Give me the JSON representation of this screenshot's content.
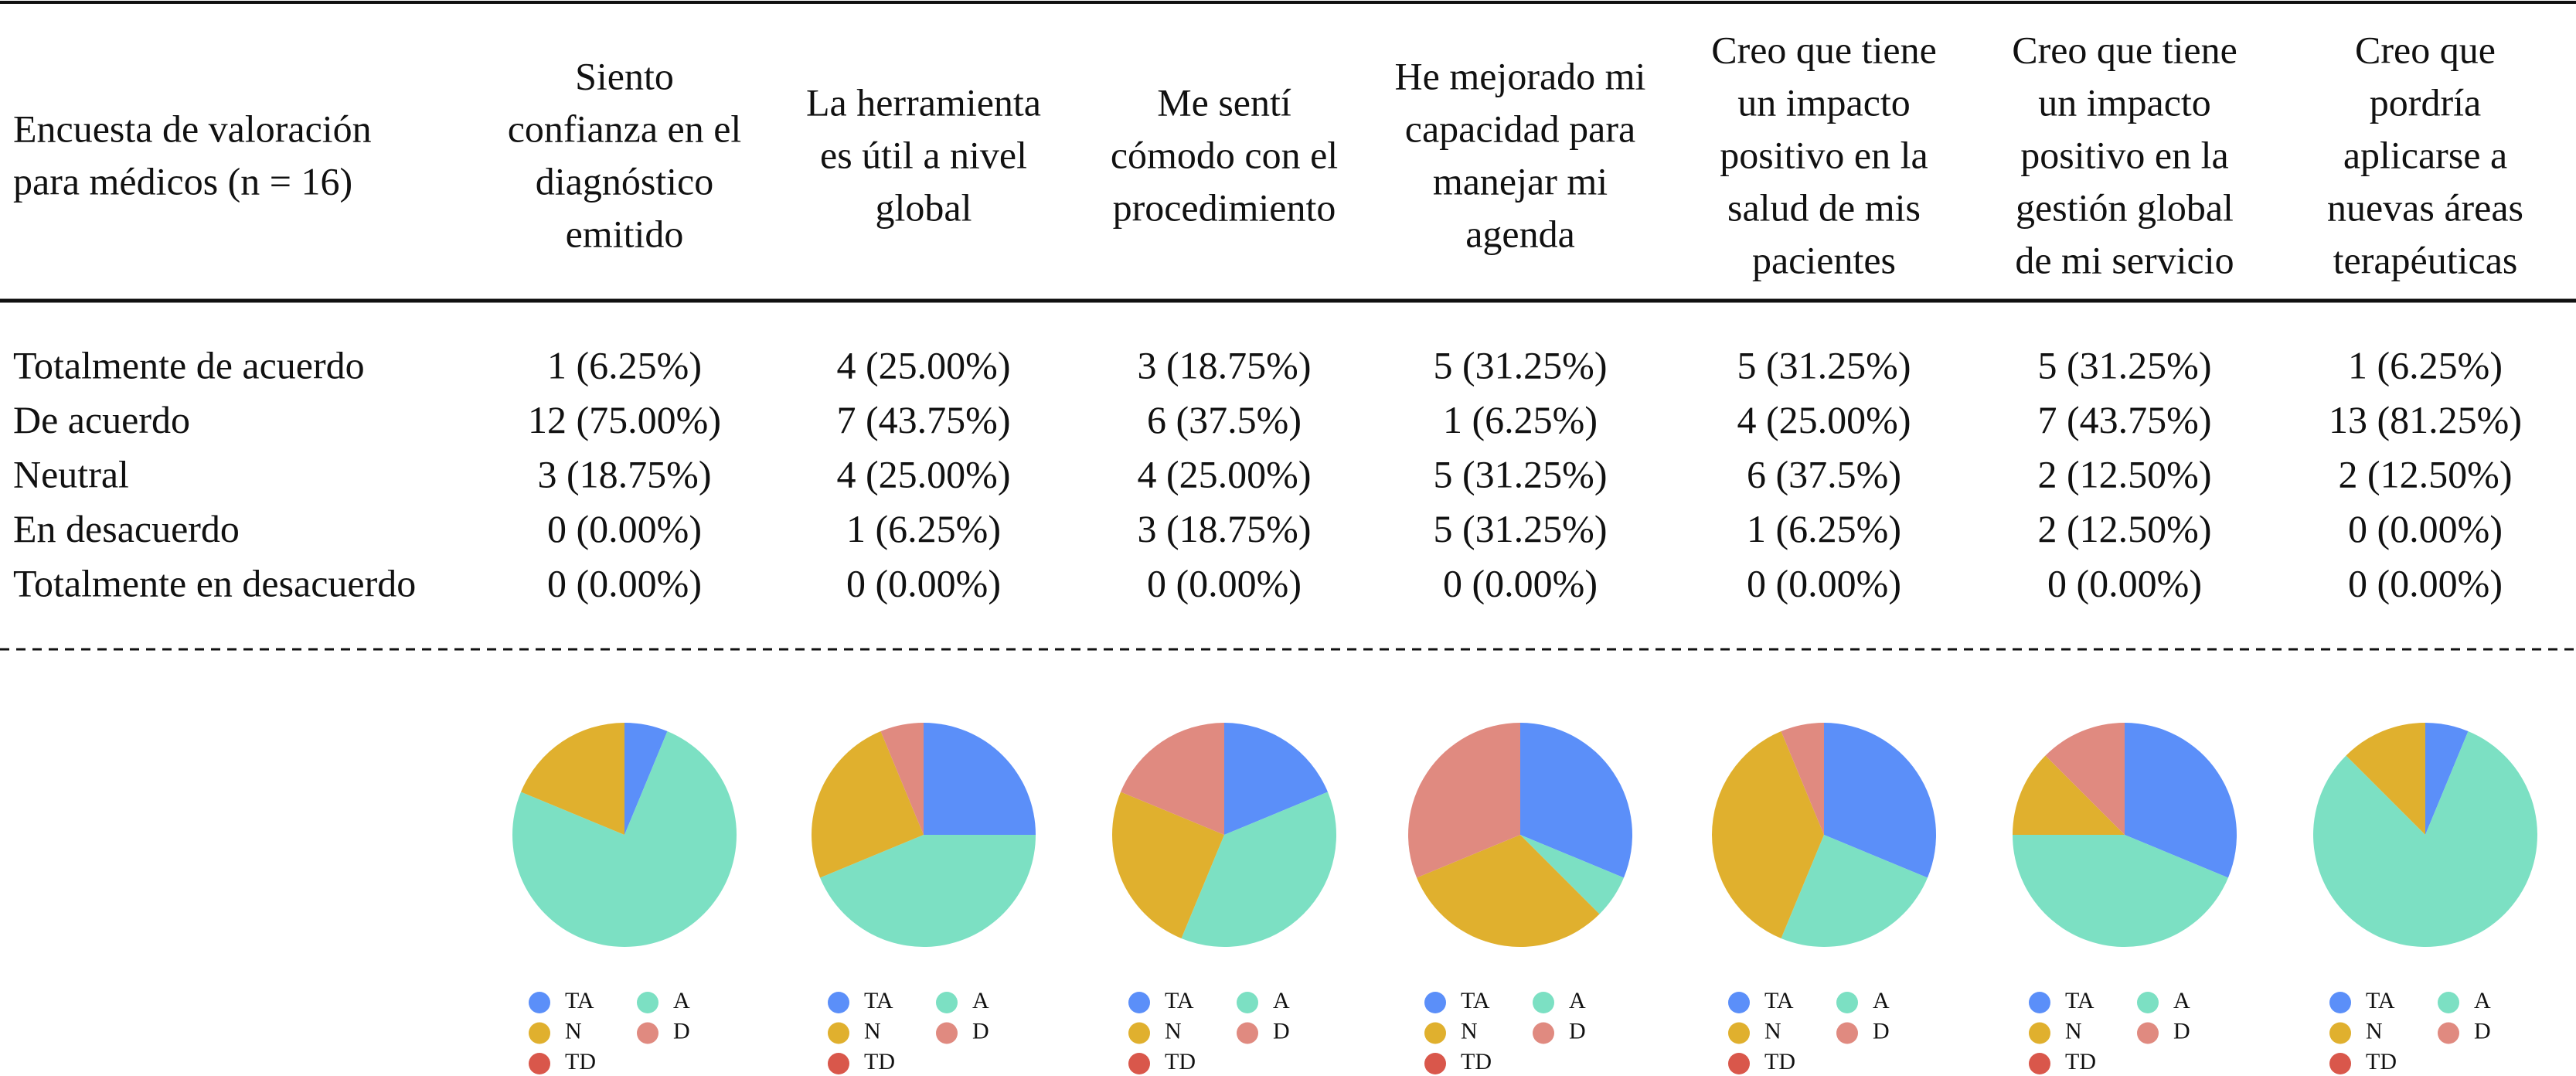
{
  "table": {
    "header": [
      [
        "Encuesta de valoración",
        "para médicos (n = 16)"
      ],
      [
        "Siento",
        "confianza en el",
        "diagnóstico",
        "emitido"
      ],
      [
        "La herramienta",
        "es útil a nivel",
        "global"
      ],
      [
        "Me sentí",
        "cómodo con el",
        "procedimiento"
      ],
      [
        "He mejorado mi",
        "capacidad para",
        "manejar mi",
        "agenda"
      ],
      [
        "Creo que tiene",
        "un impacto",
        "positivo en la",
        "salud de mis",
        "pacientes"
      ],
      [
        "Creo que tiene",
        "un impacto",
        "positivo en la",
        "gestión global",
        "de mi servicio"
      ],
      [
        "Creo que",
        "pordría",
        "aplicarse a",
        "nuevas áreas",
        "terapéuticas"
      ]
    ],
    "rows": [
      [
        "Totalmente de acuerdo",
        "1 (6.25%)",
        "4 (25.00%)",
        "3 (18.75%)",
        "5 (31.25%)",
        "5 (31.25%)",
        "5 (31.25%)",
        "1 (6.25%)"
      ],
      [
        "De acuerdo",
        "12 (75.00%)",
        "7 (43.75%)",
        "6 (37.5%)",
        "1 (6.25%)",
        "4 (25.00%)",
        "7 (43.75%)",
        "13 (81.25%)"
      ],
      [
        "Neutral",
        "3 (18.75%)",
        "4 (25.00%)",
        "4 (25.00%)",
        "5 (31.25%)",
        "6 (37.5%)",
        "2 (12.50%)",
        "2 (12.50%)"
      ],
      [
        "En desacuerdo",
        "0 (0.00%)",
        "1 (6.25%)",
        "3 (18.75%)",
        "5 (31.25%)",
        "1 (6.25%)",
        "2 (12.50%)",
        "0 (0.00%)"
      ],
      [
        "Totalmente en desacuerdo",
        "0 (0.00%)",
        "0 (0.00%)",
        "0 (0.00%)",
        "0 (0.00%)",
        "0 (0.00%)",
        "0 (0.00%)",
        "0 (0.00%)"
      ]
    ]
  },
  "chart_data": [
    {
      "type": "pie",
      "categories": [
        "TA",
        "A",
        "N",
        "D",
        "TD"
      ],
      "values": [
        1,
        12,
        3,
        0,
        0
      ],
      "colors": [
        "#5b8ff9",
        "#7ce0c3",
        "#e0b02e",
        "#e08a80",
        "#d9574b"
      ]
    },
    {
      "type": "pie",
      "categories": [
        "TA",
        "A",
        "N",
        "D",
        "TD"
      ],
      "values": [
        4,
        7,
        4,
        1,
        0
      ],
      "colors": [
        "#5b8ff9",
        "#7ce0c3",
        "#e0b02e",
        "#e08a80",
        "#d9574b"
      ]
    },
    {
      "type": "pie",
      "categories": [
        "TA",
        "A",
        "N",
        "D",
        "TD"
      ],
      "values": [
        3,
        6,
        4,
        3,
        0
      ],
      "colors": [
        "#5b8ff9",
        "#7ce0c3",
        "#e0b02e",
        "#e08a80",
        "#d9574b"
      ]
    },
    {
      "type": "pie",
      "categories": [
        "TA",
        "A",
        "N",
        "D",
        "TD"
      ],
      "values": [
        5,
        1,
        5,
        5,
        0
      ],
      "colors": [
        "#5b8ff9",
        "#7ce0c3",
        "#e0b02e",
        "#e08a80",
        "#d9574b"
      ]
    },
    {
      "type": "pie",
      "categories": [
        "TA",
        "A",
        "N",
        "D",
        "TD"
      ],
      "values": [
        5,
        4,
        6,
        1,
        0
      ],
      "colors": [
        "#5b8ff9",
        "#7ce0c3",
        "#e0b02e",
        "#e08a80",
        "#d9574b"
      ]
    },
    {
      "type": "pie",
      "categories": [
        "TA",
        "A",
        "N",
        "D",
        "TD"
      ],
      "values": [
        5,
        7,
        2,
        2,
        0
      ],
      "colors": [
        "#5b8ff9",
        "#7ce0c3",
        "#e0b02e",
        "#e08a80",
        "#d9574b"
      ]
    },
    {
      "type": "pie",
      "categories": [
        "TA",
        "A",
        "N",
        "D",
        "TD"
      ],
      "values": [
        1,
        13,
        2,
        0,
        0
      ],
      "colors": [
        "#5b8ff9",
        "#7ce0c3",
        "#e0b02e",
        "#e08a80",
        "#d9574b"
      ]
    }
  ]
}
